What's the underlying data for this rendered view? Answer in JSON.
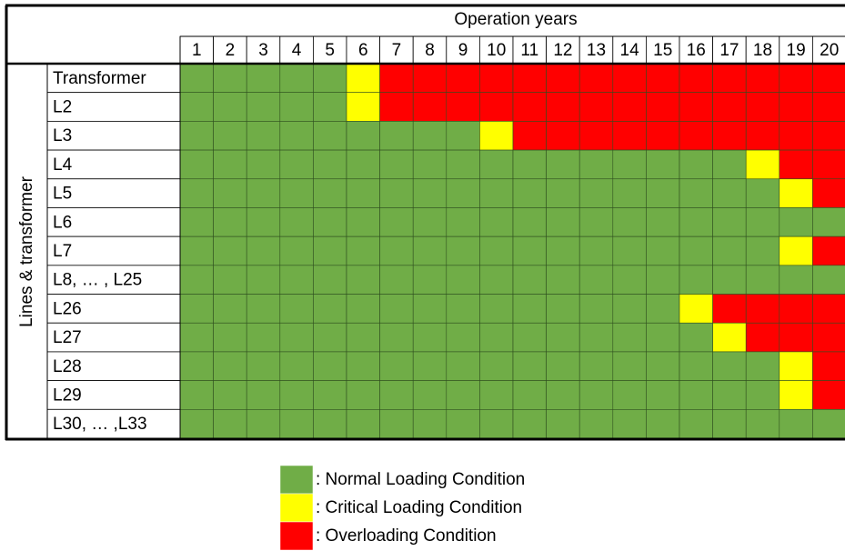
{
  "header": {
    "title": "Operation years",
    "years": [
      "1",
      "2",
      "3",
      "4",
      "5",
      "6",
      "7",
      "8",
      "9",
      "10",
      "11",
      "12",
      "13",
      "14",
      "15",
      "16",
      "17",
      "18",
      "19",
      "20"
    ]
  },
  "row_axis_label": "Lines & transformer",
  "legend": [
    {
      "label": ": Normal Loading Condition",
      "color": "#70ad47"
    },
    {
      "label": ": Critical Loading Condition",
      "color": "#ffff00"
    },
    {
      "label": ": Overloading Condition",
      "color": "#ff0000"
    }
  ],
  "rows": [
    {
      "label": "Transformer",
      "status": [
        0,
        0,
        0,
        0,
        0,
        1,
        2,
        2,
        2,
        2,
        2,
        2,
        2,
        2,
        2,
        2,
        2,
        2,
        2,
        2
      ]
    },
    {
      "label": "L2",
      "status": [
        0,
        0,
        0,
        0,
        0,
        1,
        2,
        2,
        2,
        2,
        2,
        2,
        2,
        2,
        2,
        2,
        2,
        2,
        2,
        2
      ]
    },
    {
      "label": "L3",
      "status": [
        0,
        0,
        0,
        0,
        0,
        0,
        0,
        0,
        0,
        1,
        2,
        2,
        2,
        2,
        2,
        2,
        2,
        2,
        2,
        2
      ]
    },
    {
      "label": "L4",
      "status": [
        0,
        0,
        0,
        0,
        0,
        0,
        0,
        0,
        0,
        0,
        0,
        0,
        0,
        0,
        0,
        0,
        0,
        1,
        2,
        2
      ]
    },
    {
      "label": "L5",
      "status": [
        0,
        0,
        0,
        0,
        0,
        0,
        0,
        0,
        0,
        0,
        0,
        0,
        0,
        0,
        0,
        0,
        0,
        0,
        1,
        2
      ]
    },
    {
      "label": "L6",
      "status": [
        0,
        0,
        0,
        0,
        0,
        0,
        0,
        0,
        0,
        0,
        0,
        0,
        0,
        0,
        0,
        0,
        0,
        0,
        0,
        0
      ]
    },
    {
      "label": "L7",
      "status": [
        0,
        0,
        0,
        0,
        0,
        0,
        0,
        0,
        0,
        0,
        0,
        0,
        0,
        0,
        0,
        0,
        0,
        0,
        1,
        2
      ]
    },
    {
      "label": "L8, … , L25",
      "status": [
        0,
        0,
        0,
        0,
        0,
        0,
        0,
        0,
        0,
        0,
        0,
        0,
        0,
        0,
        0,
        0,
        0,
        0,
        0,
        0
      ]
    },
    {
      "label": "L26",
      "status": [
        0,
        0,
        0,
        0,
        0,
        0,
        0,
        0,
        0,
        0,
        0,
        0,
        0,
        0,
        0,
        1,
        2,
        2,
        2,
        2
      ]
    },
    {
      "label": "L27",
      "status": [
        0,
        0,
        0,
        0,
        0,
        0,
        0,
        0,
        0,
        0,
        0,
        0,
        0,
        0,
        0,
        0,
        1,
        2,
        2,
        2
      ]
    },
    {
      "label": "L28",
      "status": [
        0,
        0,
        0,
        0,
        0,
        0,
        0,
        0,
        0,
        0,
        0,
        0,
        0,
        0,
        0,
        0,
        0,
        0,
        1,
        2
      ]
    },
    {
      "label": "L29",
      "status": [
        0,
        0,
        0,
        0,
        0,
        0,
        0,
        0,
        0,
        0,
        0,
        0,
        0,
        0,
        0,
        0,
        0,
        0,
        1,
        2
      ]
    },
    {
      "label": "L30, … ,L33",
      "status": [
        0,
        0,
        0,
        0,
        0,
        0,
        0,
        0,
        0,
        0,
        0,
        0,
        0,
        0,
        0,
        0,
        0,
        0,
        0,
        0
      ]
    }
  ]
}
